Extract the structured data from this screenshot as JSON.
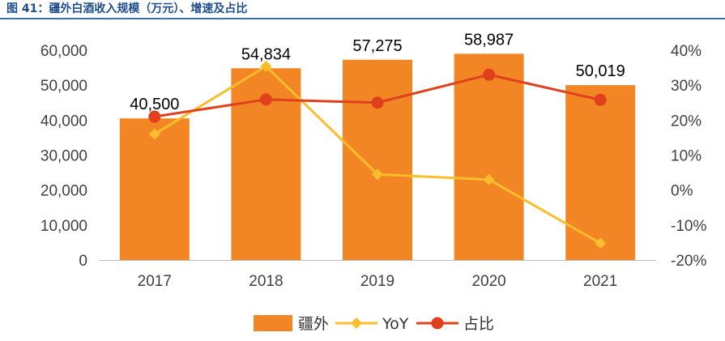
{
  "header": {
    "title": "图 41：疆外白酒收入规模（万元）、增速及占比"
  },
  "chart_data": {
    "type": "bar",
    "title": "",
    "categories": [
      "2017",
      "2018",
      "2019",
      "2020",
      "2021"
    ],
    "series": [
      {
        "name": "疆外",
        "type": "bar",
        "axis": "left",
        "color": "#f28524",
        "values": [
          40500,
          54834,
          57275,
          58987,
          50019
        ],
        "labels": [
          "40,500",
          "54,834",
          "57,275",
          "58,987",
          "50,019"
        ]
      },
      {
        "name": "YoY",
        "type": "line",
        "marker": "diamond",
        "axis": "right",
        "color": "#fbbd2c",
        "values": [
          16,
          35.4,
          4.5,
          3,
          -15.2
        ]
      },
      {
        "name": "占比",
        "type": "line",
        "marker": "circle",
        "axis": "right",
        "color": "#e0401c",
        "values": [
          21,
          25.9,
          25,
          33,
          25.8
        ]
      }
    ],
    "y_left": {
      "lim": [
        0,
        60000
      ],
      "ticks": [
        0,
        10000,
        20000,
        30000,
        40000,
        50000,
        60000
      ],
      "tick_labels": [
        "0",
        "10,000",
        "20,000",
        "30,000",
        "40,000",
        "50,000",
        "60,000"
      ]
    },
    "y_right": {
      "lim": [
        -20,
        40
      ],
      "ticks": [
        -20,
        -10,
        0,
        10,
        20,
        30,
        40
      ],
      "tick_labels": [
        "-20%",
        "-10%",
        "0%",
        "10%",
        "20%",
        "30%",
        "40%"
      ]
    },
    "grid": false,
    "legend": "bottom-center"
  }
}
